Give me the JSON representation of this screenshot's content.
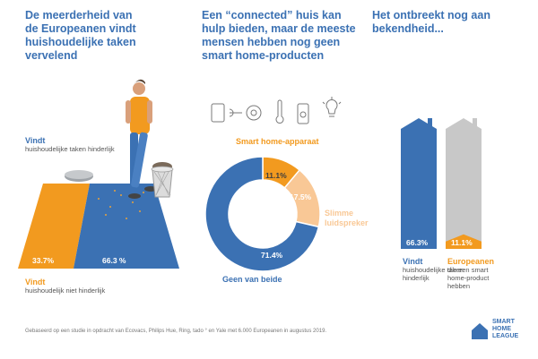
{
  "col1": {
    "heading": [
      "De meerderheid van",
      "de Europeanen vindt",
      "huishoudelijke taken",
      "vervelend"
    ],
    "vindt_label": "Vindt",
    "vindt_sub": "huishoudelijke taken hinderlijk",
    "niet_label": "Vindt",
    "niet_sub": "huishoudelijk niet hinderlijk"
  },
  "col2": {
    "heading": [
      "Een “connected” huis kan",
      "hulp bieden, maar de meeste",
      "mensen hebben nog geen",
      "smart home-producten"
    ],
    "label_smart": "Smart home-apparaat",
    "label_speaker": [
      "Slimme",
      "luidspreker"
    ],
    "label_none": "Geen van beide"
  },
  "col3": {
    "heading": [
      "Het ontbreekt nog aan",
      "bekendheid..."
    ],
    "left_label": "Vindt",
    "left_sub": [
      "huishoudelijke taken",
      "hinderlijk"
    ],
    "right_label": "Europeanen",
    "right_sub": [
      "die een smart",
      "home-product",
      "hebben"
    ]
  },
  "footnote": "Gebaseerd op een studie in opdracht van Ecovacs, Philips Hue, Ring, tado ° en Yale met 6.000 Europeanen in augustus 2019.",
  "logo": [
    "SMART",
    "HOME",
    "LEAGUE"
  ],
  "chart_data": [
    {
      "type": "area",
      "title": "",
      "series": [
        {
          "name": "Vindt huishoudelijke taken hinderlijk",
          "value": 66.3,
          "label": "66.3 %"
        },
        {
          "name": "Vindt huishoudelijk niet hinderlijk",
          "value": 33.7,
          "label": "33.7%"
        }
      ]
    },
    {
      "type": "pie",
      "title": "",
      "series": [
        {
          "name": "Smart home-apparaat",
          "value": 11.1,
          "label": "11.1%",
          "color": "#f29a1f"
        },
        {
          "name": "Slimme luidspreker",
          "value": 17.5,
          "label": "17.5%",
          "color": "#f9c896"
        },
        {
          "name": "Geen van beide",
          "value": 71.4,
          "label": "71.4%",
          "color": "#3b71b3"
        }
      ]
    },
    {
      "type": "bar",
      "title": "",
      "series": [
        {
          "name": "Vindt huishoudelijke taken hinderlijk",
          "value": 66.3,
          "label": "66.3%",
          "color": "#3b71b3"
        },
        {
          "name": "Europeanen die een smart home-product hebben",
          "value": 11.1,
          "label": "11.1%",
          "color": "#f29a1f"
        }
      ]
    }
  ],
  "colors": {
    "blue": "#3b71b3",
    "orange": "#f29a1f",
    "light_orange": "#f9c896",
    "grey": "#c8c8c8"
  }
}
